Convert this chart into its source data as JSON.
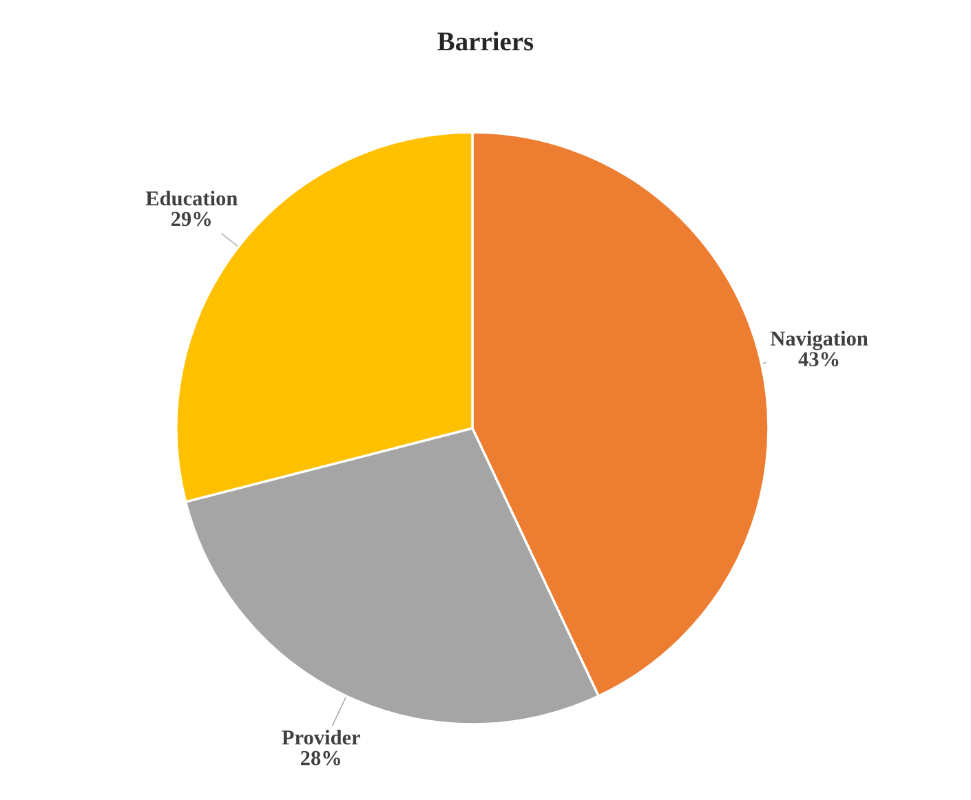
{
  "chart_data": {
    "type": "pie",
    "title": "Barriers",
    "categories": [
      "Navigation",
      "Provider",
      "Education"
    ],
    "values": [
      43,
      28,
      29
    ],
    "colors": [
      "#ed7d31",
      "#a5a5a5",
      "#ffc000"
    ],
    "value_labels": [
      "43%",
      "28%",
      "29%"
    ],
    "legend": false
  }
}
